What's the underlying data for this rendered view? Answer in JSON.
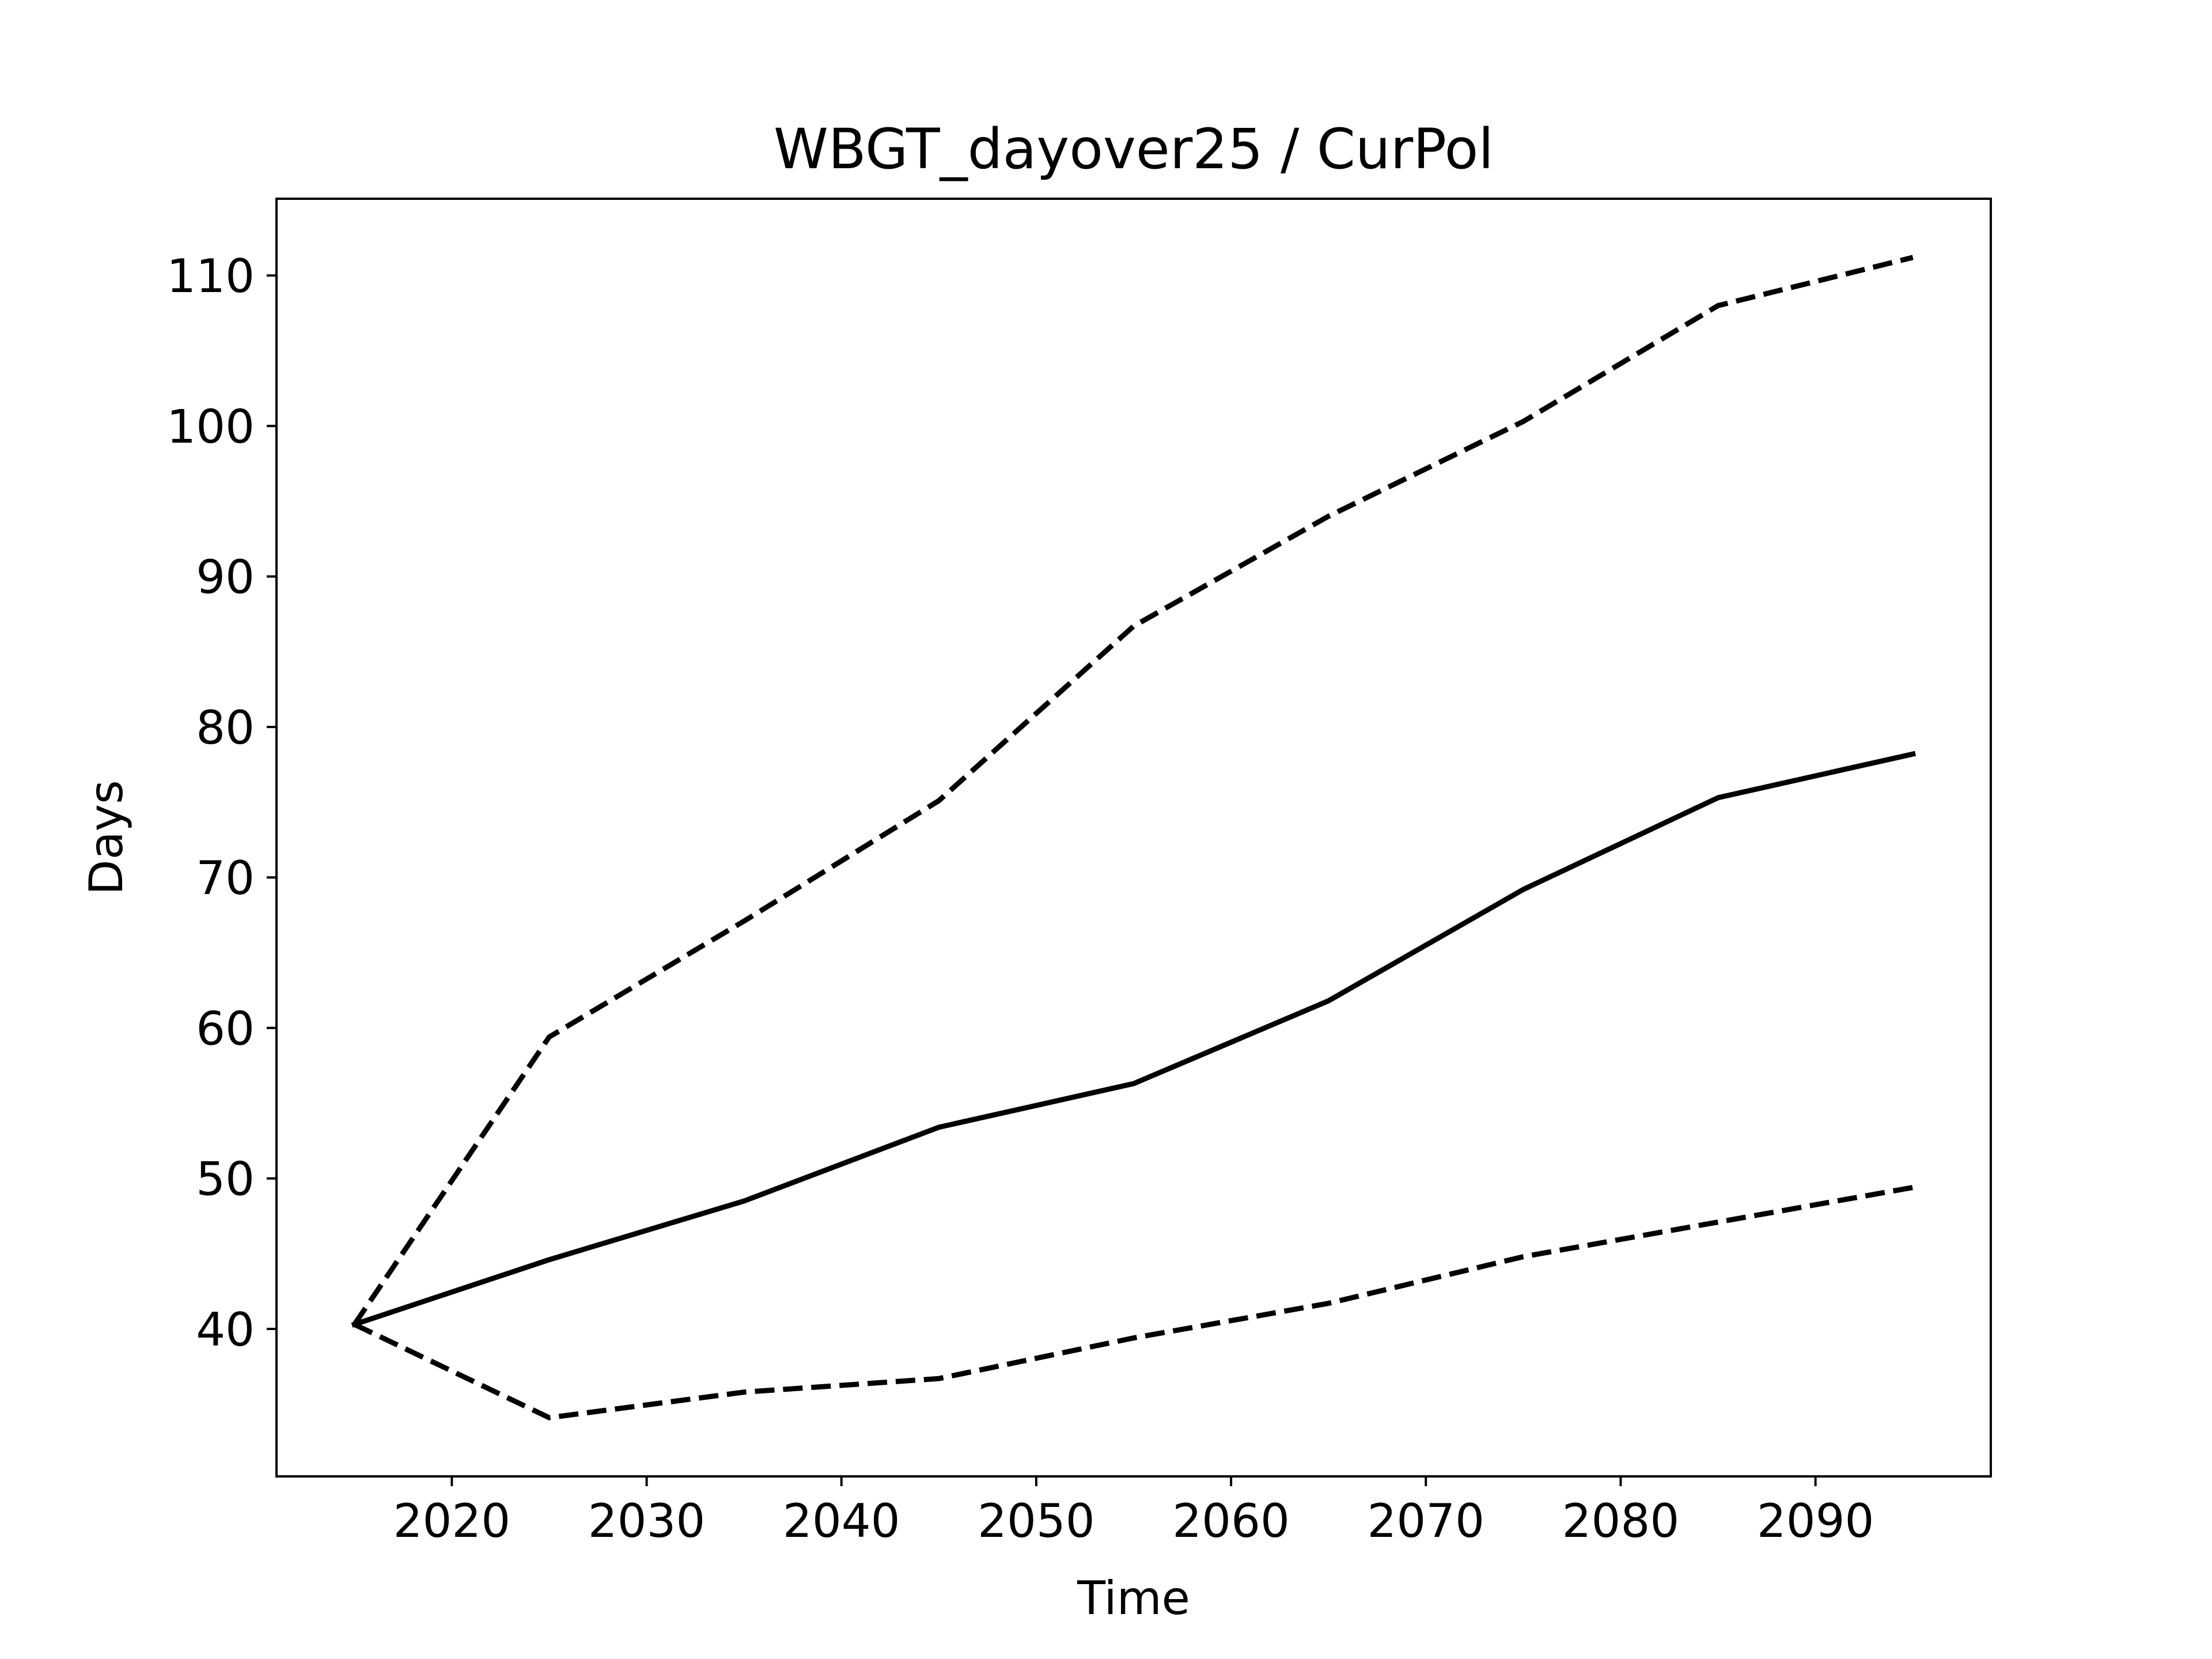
{
  "chart_data": {
    "type": "line",
    "title": "WBGT_dayover25 / CurPol",
    "xlabel": "Time",
    "ylabel": "Days",
    "xlim": [
      2011,
      2099
    ],
    "ylim": [
      30.2,
      115.1
    ],
    "xticks": [
      2020,
      2030,
      2040,
      2050,
      2060,
      2070,
      2080,
      2090
    ],
    "yticks": [
      40,
      50,
      60,
      70,
      80,
      90,
      100,
      110
    ],
    "grid": false,
    "legend": "none",
    "x": [
      2015,
      2025,
      2035,
      2045,
      2055,
      2065,
      2075,
      2085,
      2095
    ],
    "series": [
      {
        "line_style": "dashed",
        "color": "#000000",
        "values": [
          40.3,
          59.4,
          67.1,
          75.1,
          86.7,
          94.0,
          100.3,
          108.0,
          111.2
        ]
      },
      {
        "line_style": "solid",
        "color": "#000000",
        "values": [
          40.3,
          44.6,
          48.5,
          53.4,
          56.3,
          61.8,
          69.2,
          75.3,
          78.2
        ]
      },
      {
        "line_style": "dashed",
        "color": "#000000",
        "values": [
          40.3,
          34.1,
          35.8,
          36.7,
          39.4,
          41.7,
          44.8,
          47.1,
          49.4
        ]
      }
    ]
  }
}
